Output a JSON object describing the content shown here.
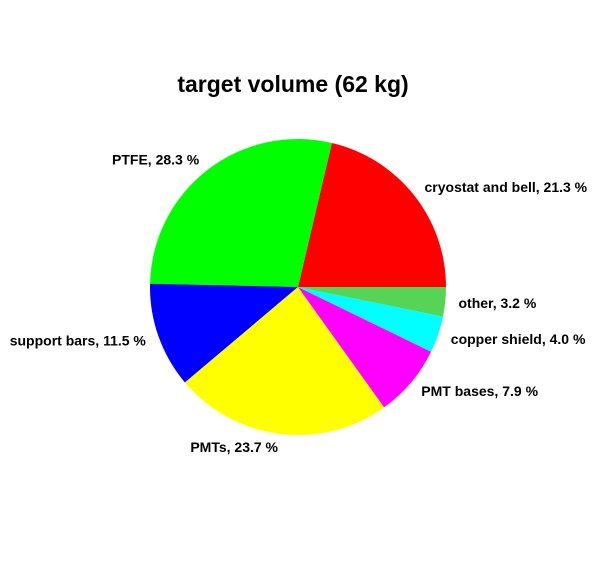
{
  "chart_data": {
    "type": "pie",
    "title": "target volume (62 kg)",
    "slices": [
      {
        "label": "cryostat and bell, 21.3 %",
        "name": "cryostat and bell",
        "value": 21.3,
        "color": "#ff0000"
      },
      {
        "label": "PTFE, 28.3 %",
        "name": "PTFE",
        "value": 28.3,
        "color": "#00ff00"
      },
      {
        "label": "support bars, 11.5 %",
        "name": "support bars",
        "value": 11.5,
        "color": "#0000ff"
      },
      {
        "label": "PMTs, 23.7 %",
        "name": "PMTs",
        "value": 23.7,
        "color": "#ffff00"
      },
      {
        "label": "PMT bases, 7.9 %",
        "name": "PMT bases",
        "value": 7.9,
        "color": "#ff00ff"
      },
      {
        "label": "copper shield, 4.0 %",
        "name": "copper shield",
        "value": 4.0,
        "color": "#00ffff"
      },
      {
        "label": "other, 3.2 %",
        "name": "other",
        "value": 3.2,
        "color": "#55d455"
      }
    ],
    "start": "3 o'clock",
    "direction": "counterclockwise",
    "legend": "none"
  }
}
